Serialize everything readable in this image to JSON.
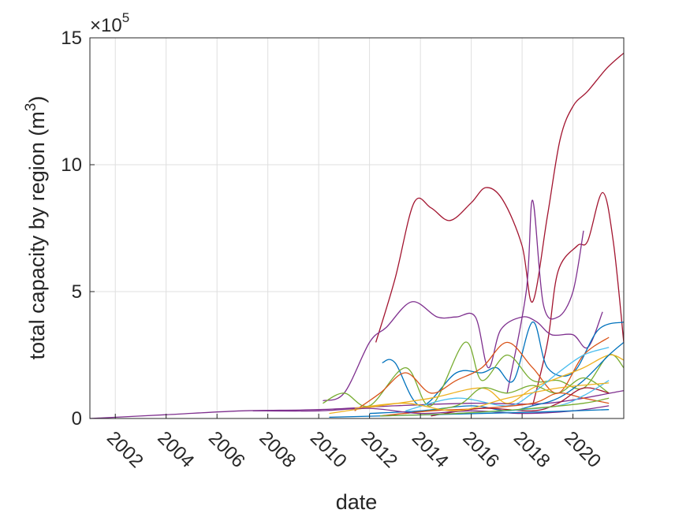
{
  "chart_data": {
    "type": "line",
    "xlabel": "date",
    "ylabel_text": "total capacity by region (m",
    "ylabel_sup": "3",
    "ylabel_close": ")",
    "exponent_base": "×10",
    "exponent_power": "5",
    "xlim": [
      "2001-01-01",
      "2021-12-31"
    ],
    "ylim": [
      0,
      15
    ],
    "y_scale_factor": 100000,
    "xticks": [
      "2002",
      "2004",
      "2006",
      "2008",
      "2010",
      "2012",
      "2014",
      "2016",
      "2018",
      "2020"
    ],
    "yticks": [
      "0",
      "5",
      "10",
      "15"
    ],
    "grid": true,
    "series": [
      {
        "color": "#A2142F",
        "points": [
          [
            "2012-04-01",
            3.0
          ],
          [
            "2013-01-01",
            5.5
          ],
          [
            "2013-10-01",
            8.5
          ],
          [
            "2014-06-01",
            8.3
          ],
          [
            "2015-03-01",
            7.8
          ],
          [
            "2016-01-01",
            8.5
          ],
          [
            "2016-08-01",
            9.1
          ],
          [
            "2017-04-01",
            8.6
          ],
          [
            "2018-01-01",
            6.8
          ],
          [
            "2018-06-01",
            4.6
          ],
          [
            "2019-01-01",
            8.0
          ],
          [
            "2019-07-01",
            11.0
          ],
          [
            "2020-01-01",
            12.3
          ],
          [
            "2020-08-01",
            12.9
          ],
          [
            "2021-05-01",
            13.8
          ],
          [
            "2021-12-31",
            14.4
          ]
        ]
      },
      {
        "color": "#A2142F",
        "points": [
          [
            "2018-06-01",
            0.5
          ],
          [
            "2019-01-01",
            3.0
          ],
          [
            "2019-06-01",
            5.8
          ],
          [
            "2020-03-01",
            6.8
          ],
          [
            "2020-08-01",
            7.0
          ],
          [
            "2021-03-01",
            8.9
          ],
          [
            "2021-08-01",
            7.0
          ],
          [
            "2021-12-31",
            3.0
          ]
        ]
      },
      {
        "color": "#7E2F8E",
        "points": [
          [
            "2010-03-01",
            0.7
          ],
          [
            "2011-01-01",
            1.0
          ],
          [
            "2012-01-01",
            3.0
          ],
          [
            "2012-09-01",
            3.6
          ],
          [
            "2013-09-01",
            4.6
          ],
          [
            "2014-09-01",
            4.0
          ],
          [
            "2015-06-01",
            4.0
          ],
          [
            "2016-03-01",
            4.0
          ],
          [
            "2016-09-01",
            2.0
          ],
          [
            "2017-03-01",
            3.5
          ],
          [
            "2018-01-01",
            4.0
          ],
          [
            "2018-08-01",
            3.8
          ],
          [
            "2019-03-01",
            3.3
          ],
          [
            "2020-01-01",
            3.3
          ],
          [
            "2020-08-01",
            2.8
          ],
          [
            "2021-03-01",
            4.2
          ]
        ]
      },
      {
        "color": "#7E2F8E",
        "points": [
          [
            "2017-06-01",
            1.0
          ],
          [
            "2018-03-01",
            5.0
          ],
          [
            "2018-06-01",
            8.6
          ],
          [
            "2018-11-01",
            4.5
          ],
          [
            "2019-06-01",
            4.0
          ],
          [
            "2020-01-01",
            5.0
          ],
          [
            "2020-06-01",
            7.4
          ]
        ]
      },
      {
        "color": "#7E2F8E",
        "points": [
          [
            "2001-01-01",
            0.0
          ],
          [
            "2004-01-01",
            0.15
          ],
          [
            "2007-01-01",
            0.3
          ],
          [
            "2010-01-01",
            0.35
          ],
          [
            "2013-01-01",
            0.5
          ],
          [
            "2016-01-01",
            0.6
          ],
          [
            "2019-01-01",
            0.6
          ],
          [
            "2021-12-31",
            1.1
          ]
        ]
      },
      {
        "color": "#0072BD",
        "points": [
          [
            "2012-07-01",
            2.2
          ],
          [
            "2013-01-01",
            2.2
          ],
          [
            "2014-01-01",
            0.5
          ],
          [
            "2015-06-01",
            1.8
          ],
          [
            "2016-06-01",
            1.8
          ],
          [
            "2017-01-01",
            2.0
          ],
          [
            "2017-09-01",
            1.5
          ],
          [
            "2018-06-01",
            3.8
          ],
          [
            "2019-01-01",
            2.0
          ],
          [
            "2020-01-01",
            1.8
          ],
          [
            "2021-01-01",
            3.5
          ],
          [
            "2021-12-31",
            3.8
          ]
        ]
      },
      {
        "color": "#77AC30",
        "points": [
          [
            "2010-03-01",
            0.6
          ],
          [
            "2011-01-01",
            1.0
          ],
          [
            "2012-01-01",
            0.5
          ],
          [
            "2013-06-01",
            2.0
          ],
          [
            "2014-06-01",
            0.5
          ],
          [
            "2015-10-01",
            3.0
          ],
          [
            "2016-06-01",
            1.5
          ],
          [
            "2017-06-01",
            2.5
          ],
          [
            "2018-06-01",
            1.5
          ],
          [
            "2019-06-01",
            1.5
          ],
          [
            "2020-06-01",
            1.2
          ],
          [
            "2021-06-01",
            2.5
          ],
          [
            "2021-12-31",
            2.0
          ]
        ]
      },
      {
        "color": "#D95319",
        "points": [
          [
            "2011-06-01",
            0.3
          ],
          [
            "2012-06-01",
            1.0
          ],
          [
            "2013-06-01",
            1.8
          ],
          [
            "2014-06-01",
            1.0
          ],
          [
            "2015-06-01",
            1.5
          ],
          [
            "2016-06-01",
            2.0
          ],
          [
            "2017-06-01",
            3.0
          ],
          [
            "2018-06-01",
            2.0
          ],
          [
            "2019-06-01",
            1.0
          ],
          [
            "2020-06-01",
            2.5
          ],
          [
            "2021-06-01",
            3.2
          ]
        ]
      },
      {
        "color": "#EDB120",
        "points": [
          [
            "2010-06-01",
            0.2
          ],
          [
            "2012-06-01",
            0.5
          ],
          [
            "2014-06-01",
            0.8
          ],
          [
            "2016-06-01",
            1.2
          ],
          [
            "2017-06-01",
            0.6
          ],
          [
            "2018-06-01",
            1.2
          ],
          [
            "2019-06-01",
            1.6
          ],
          [
            "2020-06-01",
            2.0
          ],
          [
            "2021-06-01",
            2.5
          ],
          [
            "2021-12-31",
            2.3
          ]
        ]
      },
      {
        "color": "#4DBEEE",
        "points": [
          [
            "2013-06-01",
            0.3
          ],
          [
            "2015-06-01",
            0.8
          ],
          [
            "2017-06-01",
            0.5
          ],
          [
            "2018-06-01",
            1.0
          ],
          [
            "2019-06-01",
            1.8
          ],
          [
            "2020-06-01",
            2.5
          ],
          [
            "2021-06-01",
            2.8
          ]
        ]
      },
      {
        "color": "#0072BD",
        "points": [
          [
            "2012-01-01",
            0.2
          ],
          [
            "2014-01-01",
            0.3
          ],
          [
            "2016-01-01",
            0.5
          ],
          [
            "2017-06-01",
            0.3
          ],
          [
            "2018-06-01",
            0.5
          ],
          [
            "2019-06-01",
            0.8
          ],
          [
            "2020-06-01",
            1.5
          ],
          [
            "2021-06-01",
            2.5
          ],
          [
            "2021-12-31",
            3.0
          ]
        ]
      },
      {
        "color": "#77AC30",
        "points": [
          [
            "2013-06-01",
            0.2
          ],
          [
            "2015-06-01",
            0.5
          ],
          [
            "2016-06-01",
            1.2
          ],
          [
            "2017-06-01",
            1.0
          ],
          [
            "2018-06-01",
            1.3
          ],
          [
            "2019-06-01",
            1.0
          ],
          [
            "2020-06-01",
            1.6
          ],
          [
            "2021-06-01",
            1.0
          ]
        ]
      },
      {
        "color": "#D95319",
        "points": [
          [
            "2012-06-01",
            0.1
          ],
          [
            "2014-06-01",
            0.3
          ],
          [
            "2016-06-01",
            0.4
          ],
          [
            "2018-06-01",
            0.6
          ],
          [
            "2019-06-01",
            1.0
          ],
          [
            "2020-06-01",
            0.8
          ],
          [
            "2021-06-01",
            0.6
          ]
        ]
      },
      {
        "color": "#A2142F",
        "points": [
          [
            "2014-06-01",
            0.1
          ],
          [
            "2016-06-01",
            0.4
          ],
          [
            "2018-06-01",
            0.3
          ],
          [
            "2019-06-01",
            0.6
          ],
          [
            "2020-06-01",
            1.2
          ],
          [
            "2021-06-01",
            1.0
          ]
        ]
      },
      {
        "color": "#7E2F8E",
        "points": [
          [
            "2007-06-01",
            0.3
          ],
          [
            "2010-01-01",
            0.3
          ],
          [
            "2012-01-01",
            0.4
          ],
          [
            "2014-01-01",
            0.2
          ],
          [
            "2016-01-01",
            0.3
          ],
          [
            "2018-01-01",
            0.2
          ],
          [
            "2020-01-01",
            0.3
          ],
          [
            "2021-06-01",
            0.5
          ]
        ]
      },
      {
        "color": "#4DBEEE",
        "points": [
          [
            "2015-06-01",
            0.2
          ],
          [
            "2017-06-01",
            0.3
          ],
          [
            "2019-06-01",
            0.5
          ],
          [
            "2020-06-01",
            0.9
          ],
          [
            "2021-06-01",
            1.5
          ]
        ]
      },
      {
        "color": "#EDB120",
        "points": [
          [
            "2011-06-01",
            0.4
          ],
          [
            "2013-06-01",
            0.6
          ],
          [
            "2015-06-01",
            0.3
          ],
          [
            "2017-06-01",
            0.8
          ],
          [
            "2019-06-01",
            1.2
          ],
          [
            "2021-06-01",
            1.4
          ]
        ]
      },
      {
        "color": "#0072BD",
        "points": [
          [
            "2010-06-01",
            0.05
          ],
          [
            "2014-06-01",
            0.15
          ],
          [
            "2018-06-01",
            0.25
          ],
          [
            "2021-06-01",
            0.35
          ]
        ]
      },
      {
        "color": "#77AC30",
        "points": [
          [
            "2012-06-01",
            0.1
          ],
          [
            "2015-06-01",
            0.2
          ],
          [
            "2018-06-01",
            0.4
          ],
          [
            "2020-06-01",
            0.6
          ],
          [
            "2021-06-01",
            0.8
          ]
        ]
      }
    ]
  }
}
